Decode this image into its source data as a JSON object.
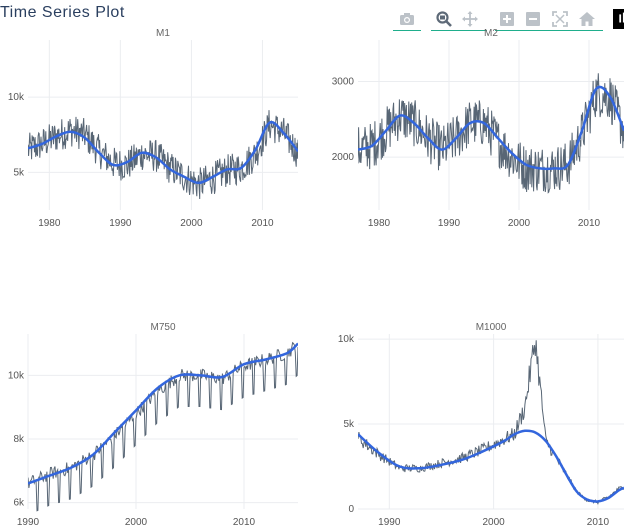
{
  "title": "Time Series Plot",
  "modebar": {
    "buttons": [
      {
        "name": "camera-icon",
        "group": 0
      },
      {
        "name": "zoom-icon",
        "group": 1
      },
      {
        "name": "pan-icon",
        "group": 1
      },
      {
        "name": "zoom-in-icon",
        "group": 2
      },
      {
        "name": "zoom-out-icon",
        "group": 2
      },
      {
        "name": "autoscale-icon",
        "group": 2
      },
      {
        "name": "reset-axes-icon",
        "group": 2
      },
      {
        "name": "plotly-logo-icon",
        "group": 3
      }
    ],
    "accent_color": "#1fae8c"
  },
  "chart_data": [
    {
      "type": "line",
      "title": "M1",
      "xlim": [
        1977,
        2015
      ],
      "ylim": [
        2500,
        13800
      ],
      "xticks": [
        1980,
        1990,
        2000,
        2010
      ],
      "xtick_labels": [
        "1980",
        "1990",
        "2000",
        "2010"
      ],
      "yticks": [
        5000,
        10000
      ],
      "ytick_labels": [
        "5k",
        "10k"
      ],
      "series": [
        {
          "role": "raw",
          "color": "#586675",
          "x": [
            1977,
            1979,
            1981,
            1983,
            1985,
            1987,
            1989,
            1991,
            1993,
            1995,
            1997,
            1999,
            2001,
            2003,
            2005,
            2007,
            2009,
            2011,
            2013,
            2015
          ],
          "y": [
            6500,
            6900,
            7400,
            7800,
            7500,
            6400,
            5600,
            5500,
            6200,
            6100,
            5300,
            4700,
            4200,
            4600,
            5100,
            5300,
            6200,
            8200,
            7600,
            6300
          ]
        },
        {
          "role": "smooth",
          "color": "#3366dd",
          "x": [
            1977,
            1979,
            1981,
            1983,
            1985,
            1987,
            1989,
            1991,
            1993,
            1995,
            1997,
            1999,
            2001,
            2003,
            2005,
            2007,
            2009,
            2011,
            2013,
            2015
          ],
          "y": [
            6600,
            6900,
            7400,
            7700,
            7300,
            6300,
            5500,
            5700,
            6300,
            6000,
            5200,
            4700,
            4300,
            4700,
            5200,
            5300,
            6500,
            8300,
            7600,
            6400
          ]
        }
      ]
    },
    {
      "type": "line",
      "title": "M2",
      "xlim": [
        1977,
        2015
      ],
      "ylim": [
        1300,
        3550
      ],
      "xticks": [
        1980,
        1990,
        2000,
        2010
      ],
      "xtick_labels": [
        "1980",
        "1990",
        "2000",
        "2010"
      ],
      "yticks": [
        2000,
        3000
      ],
      "ytick_labels": [
        "2000",
        "3000"
      ],
      "series": [
        {
          "role": "raw",
          "color": "#586675",
          "x": [
            1977,
            1979,
            1981,
            1983,
            1985,
            1987,
            1989,
            1991,
            1993,
            1995,
            1997,
            1999,
            2001,
            2003,
            2005,
            2007,
            2009,
            2011,
            2013,
            2015
          ],
          "y": [
            2100,
            2150,
            2350,
            2550,
            2450,
            2250,
            2100,
            2250,
            2450,
            2450,
            2200,
            2000,
            1850,
            1850,
            1850,
            1900,
            2300,
            2850,
            2800,
            2350
          ]
        },
        {
          "role": "smooth",
          "color": "#3366dd",
          "x": [
            1977,
            1979,
            1981,
            1983,
            1985,
            1987,
            1989,
            1991,
            1993,
            1995,
            1997,
            1999,
            2001,
            2003,
            2005,
            2007,
            2009,
            2011,
            2013,
            2015
          ],
          "y": [
            2100,
            2150,
            2350,
            2550,
            2450,
            2250,
            2100,
            2250,
            2450,
            2450,
            2250,
            2050,
            1900,
            1850,
            1850,
            1900,
            2350,
            2900,
            2800,
            2350
          ]
        }
      ]
    },
    {
      "type": "line",
      "title": "M750",
      "xlim": [
        1990,
        2015
      ],
      "ylim": [
        5800,
        11300
      ],
      "xticks": [
        1990,
        2000,
        2010
      ],
      "xtick_labels": [
        "1990",
        "2000",
        "2010"
      ],
      "yticks": [
        6000,
        8000,
        10000
      ],
      "ytick_labels": [
        "6k",
        "8k",
        "10k"
      ],
      "series": [
        {
          "role": "raw",
          "color": "#586675",
          "x": [
            1990,
            1992,
            1994,
            1996,
            1998,
            2000,
            2002,
            2004,
            2006,
            2008,
            2010,
            2012,
            2014,
            2015
          ],
          "y": [
            6600,
            6900,
            7100,
            7500,
            8100,
            8800,
            9500,
            10000,
            10000,
            9900,
            10300,
            10500,
            10700,
            11000
          ]
        },
        {
          "role": "smooth",
          "color": "#3366dd",
          "x": [
            1990,
            1992,
            1994,
            1996,
            1998,
            2000,
            2002,
            2004,
            2006,
            2008,
            2010,
            2012,
            2014,
            2015
          ],
          "y": [
            6600,
            6850,
            7100,
            7500,
            8200,
            8900,
            9600,
            10000,
            10000,
            9950,
            10350,
            10500,
            10700,
            11000
          ]
        }
      ]
    },
    {
      "type": "line",
      "title": "M1000",
      "xlim": [
        1987,
        2012.5
      ],
      "ylim": [
        0,
        10300
      ],
      "xticks": [
        1990,
        2000,
        2010
      ],
      "xtick_labels": [
        "1990",
        "2000",
        "2010"
      ],
      "yticks": [
        0,
        5000,
        10000
      ],
      "ytick_labels": [
        "0",
        "5k",
        "10k"
      ],
      "series": [
        {
          "role": "raw",
          "color": "#586675",
          "x": [
            1987,
            1989,
            1991,
            1993,
            1995,
            1997,
            1999,
            2001,
            2002,
            2003,
            2004,
            2005,
            2006,
            2007,
            2008,
            2009,
            2010,
            2011,
            2012,
            2012.5
          ],
          "y": [
            4200,
            3200,
            2400,
            2400,
            2700,
            3000,
            3500,
            4100,
            4400,
            6000,
            10000,
            4000,
            3000,
            2000,
            1000,
            500,
            400,
            700,
            1200,
            1300
          ]
        },
        {
          "role": "smooth",
          "color": "#3366dd",
          "x": [
            1987,
            1989,
            1991,
            1993,
            1995,
            1997,
            1999,
            2001,
            2002,
            2003,
            2004,
            2005,
            2006,
            2007,
            2008,
            2009,
            2010,
            2011,
            2012,
            2012.5
          ],
          "y": [
            4400,
            3300,
            2500,
            2400,
            2600,
            2900,
            3400,
            4000,
            4400,
            4600,
            4500,
            4000,
            3100,
            2000,
            1000,
            550,
            450,
            650,
            1100,
            1250
          ]
        }
      ]
    }
  ]
}
